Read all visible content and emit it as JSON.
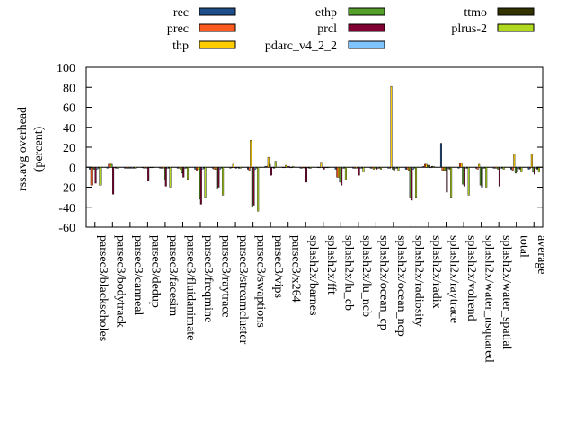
{
  "chart_data": {
    "type": "bar",
    "ylabel": "rss.avg overhead (percent)",
    "ylabel_lines": [
      "rss.avg overhead",
      "(percent)"
    ],
    "ylim": [
      -60,
      100
    ],
    "yticks": [
      100,
      80,
      60,
      40,
      20,
      0,
      -20,
      -40,
      -60
    ],
    "legend_position": "top",
    "categories": [
      "parsec3/blackscholes",
      "parsec3/bodytrack",
      "parsec3/canneal",
      "parsec3/dedup",
      "parsec3/facesim",
      "parsec3/fluidanimate",
      "parsec3/freqmine",
      "parsec3/raytrace",
      "parsec3/streamcluster",
      "parsec3/swaptions",
      "parsec3/vips",
      "parsec3/x264",
      "splash2x/barnes",
      "splash2x/fft",
      "splash2x/lu_cb",
      "splash2x/lu_ncb",
      "splash2x/ocean_cp",
      "splash2x/ocean_ncp",
      "splash2x/radiosity",
      "splash2x/radix",
      "splash2x/raytrace",
      "splash2x/volrend",
      "splash2x/water_nsquared",
      "splash2x/water_spatial",
      "total",
      "average"
    ],
    "series": [
      {
        "name": "rec",
        "color": "#1f4e8c",
        "values": [
          -2,
          -1,
          -1,
          0,
          -1,
          -1,
          -2,
          -1,
          -1,
          -2,
          1,
          0,
          -1,
          0,
          -2,
          -1,
          -1,
          -1,
          -2,
          1,
          24,
          -1,
          -1,
          -1,
          -2,
          -2
        ]
      },
      {
        "name": "prec",
        "color": "#ff5a1f",
        "values": [
          -18,
          3,
          -1,
          -1,
          -1,
          -1,
          -3,
          -2,
          0,
          -3,
          1,
          0,
          -1,
          0,
          -10,
          -1,
          -1,
          -1,
          -2,
          3,
          -3,
          4,
          -2,
          -1,
          -3,
          -1
        ]
      },
      {
        "name": "thp",
        "color": "#ffcc00",
        "values": [
          -1,
          4,
          -1,
          0,
          -1,
          -2,
          -2,
          -2,
          3,
          27,
          10,
          2,
          0,
          5,
          -10,
          -1,
          -2,
          81,
          -3,
          3,
          -3,
          4,
          3,
          -1,
          13,
          13
        ]
      },
      {
        "name": "ethp",
        "color": "#55a02a",
        "values": [
          -2,
          3,
          -1,
          -1,
          -13,
          -6,
          -32,
          -22,
          0,
          -40,
          3,
          1,
          -1,
          0,
          -15,
          -1,
          -1,
          -2,
          -30,
          2,
          -3,
          -17,
          -18,
          -2,
          -6,
          -4
        ]
      },
      {
        "name": "prcl",
        "color": "#800033",
        "values": [
          -16,
          -27,
          -1,
          -14,
          -19,
          -10,
          -37,
          -20,
          -1,
          -38,
          -8,
          1,
          -15,
          -2,
          -18,
          -8,
          -2,
          -3,
          -33,
          2,
          -25,
          -19,
          -20,
          -19,
          -5,
          -7
        ]
      },
      {
        "name": "pdarc_v4_2_2",
        "color": "#7fc4ff",
        "values": [
          -2,
          0,
          -1,
          0,
          -1,
          -1,
          -2,
          -2,
          0,
          -2,
          0,
          0,
          0,
          0,
          -1,
          -1,
          -1,
          -1,
          -2,
          0,
          -1,
          -1,
          -1,
          -1,
          -1,
          -1
        ]
      },
      {
        "name": "ttmo",
        "color": "#333300",
        "values": [
          -1,
          -1,
          -1,
          0,
          -1,
          -1,
          -1,
          -1,
          -1,
          -1,
          -1,
          0,
          -1,
          0,
          -1,
          -1,
          -1,
          -1,
          -1,
          1,
          -2,
          -1,
          -1,
          -1,
          -2,
          -2
        ]
      },
      {
        "name": "plrus-2",
        "color": "#b0d81e",
        "values": [
          -18,
          -1,
          -1,
          0,
          -20,
          -12,
          -30,
          -28,
          -1,
          -44,
          6,
          1,
          -1,
          0,
          -13,
          -5,
          -2,
          -3,
          -30,
          1,
          -30,
          -28,
          -20,
          -2,
          -5,
          -5
        ]
      }
    ]
  }
}
